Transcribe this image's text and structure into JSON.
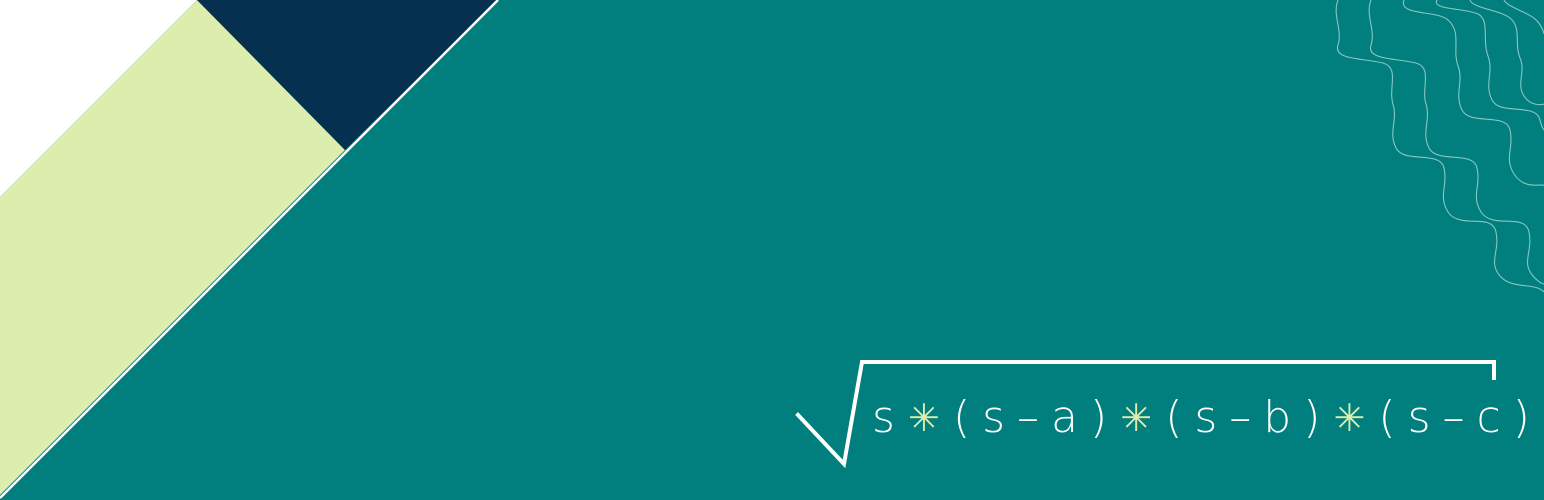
{
  "banner": {
    "colors": {
      "teal_background": "#017e7e",
      "navy_triangle": "#06304f",
      "lime_band": "#dcedad",
      "white_corner": "#ffffff",
      "formula_text": "#ffffff",
      "operator_accent": "#dcedad"
    },
    "formula": {
      "radical": "square-root-symbol",
      "tokens": [
        {
          "text": "s",
          "kind": "var"
        },
        {
          "text": "✳",
          "kind": "op"
        },
        {
          "text": "(",
          "kind": "paren"
        },
        {
          "text": "s",
          "kind": "var"
        },
        {
          "text": "–",
          "kind": "var"
        },
        {
          "text": "a",
          "kind": "var"
        },
        {
          "text": ")",
          "kind": "paren"
        },
        {
          "text": "✳",
          "kind": "op"
        },
        {
          "text": "(",
          "kind": "paren"
        },
        {
          "text": "s",
          "kind": "var"
        },
        {
          "text": "–",
          "kind": "var"
        },
        {
          "text": "b",
          "kind": "var"
        },
        {
          "text": ")",
          "kind": "paren"
        },
        {
          "text": "✳",
          "kind": "op"
        },
        {
          "text": "(",
          "kind": "paren"
        },
        {
          "text": "s",
          "kind": "var"
        },
        {
          "text": "–",
          "kind": "var"
        },
        {
          "text": "c",
          "kind": "var"
        },
        {
          "text": ")",
          "kind": "paren"
        }
      ]
    },
    "decoration": "wavy-lines-pattern"
  }
}
